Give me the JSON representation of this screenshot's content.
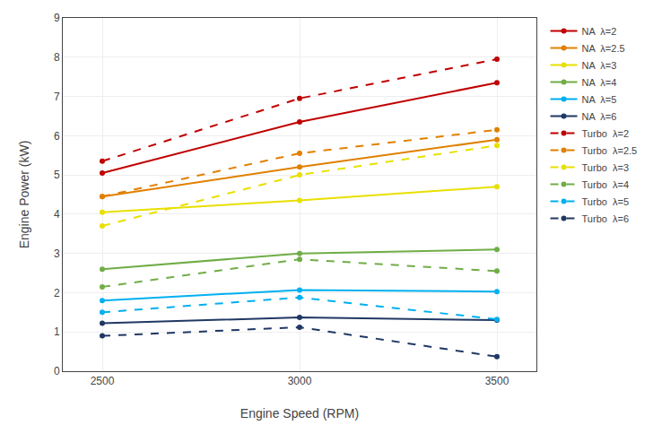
{
  "chart_data": {
    "type": "line",
    "xlabel": "Engine Speed (RPM)",
    "ylabel": "Engine Power (kW)",
    "x": [
      2500,
      3000,
      3500
    ],
    "series": [
      {
        "name": "NA  λ=2",
        "color": "#c00000",
        "line_style": "solid",
        "marker": "circle",
        "values": [
          5.05,
          6.35,
          7.35
        ]
      },
      {
        "name": "NA  λ=2.5",
        "color": "#e08000",
        "line_style": "solid",
        "marker": "circle",
        "values": [
          4.45,
          5.2,
          5.9
        ]
      },
      {
        "name": "NA  λ=3",
        "color": "#e8e000",
        "line_style": "solid",
        "marker": "circle",
        "values": [
          4.05,
          4.35,
          4.7
        ]
      },
      {
        "name": "NA  λ=4",
        "color": "#70ad47",
        "line_style": "solid",
        "marker": "circle",
        "values": [
          2.6,
          3.0,
          3.1
        ]
      },
      {
        "name": "NA  λ=5",
        "color": "#00b0f0",
        "line_style": "solid",
        "marker": "circle",
        "values": [
          1.8,
          2.07,
          2.03
        ]
      },
      {
        "name": "NA  λ=6",
        "color": "#203864",
        "line_style": "solid",
        "marker": "circle",
        "values": [
          1.22,
          1.37,
          1.3
        ]
      },
      {
        "name": "Turbo  λ=2",
        "color": "#c00000",
        "line_style": "dashed",
        "marker": "circle",
        "values": [
          5.35,
          6.95,
          7.95
        ]
      },
      {
        "name": "Turbo  λ=2.5",
        "color": "#e08000",
        "line_style": "dashed",
        "marker": "circle",
        "values": [
          4.45,
          5.55,
          6.15
        ]
      },
      {
        "name": "Turbo  λ=3",
        "color": "#e8e000",
        "line_style": "dashed",
        "marker": "circle",
        "values": [
          3.7,
          5.0,
          5.75
        ]
      },
      {
        "name": "Turbo  λ=4",
        "color": "#70ad47",
        "line_style": "dashed",
        "marker": "circle",
        "values": [
          2.15,
          2.85,
          2.55
        ]
      },
      {
        "name": "Turbo  λ=5",
        "color": "#00b0f0",
        "line_style": "dashed",
        "marker": "circle",
        "values": [
          1.5,
          1.88,
          1.32
        ]
      },
      {
        "name": "Turbo  λ=6",
        "color": "#203864",
        "line_style": "dashed",
        "marker": "circle",
        "values": [
          0.9,
          1.12,
          0.37
        ]
      }
    ],
    "xlim": [
      2400,
      3600
    ],
    "ylim": [
      0,
      9
    ],
    "xticks": [
      2500,
      3000,
      3500
    ],
    "yticks": [
      0,
      1,
      2,
      3,
      4,
      5,
      6,
      7,
      8,
      9
    ],
    "grid": true,
    "legend": "right"
  }
}
